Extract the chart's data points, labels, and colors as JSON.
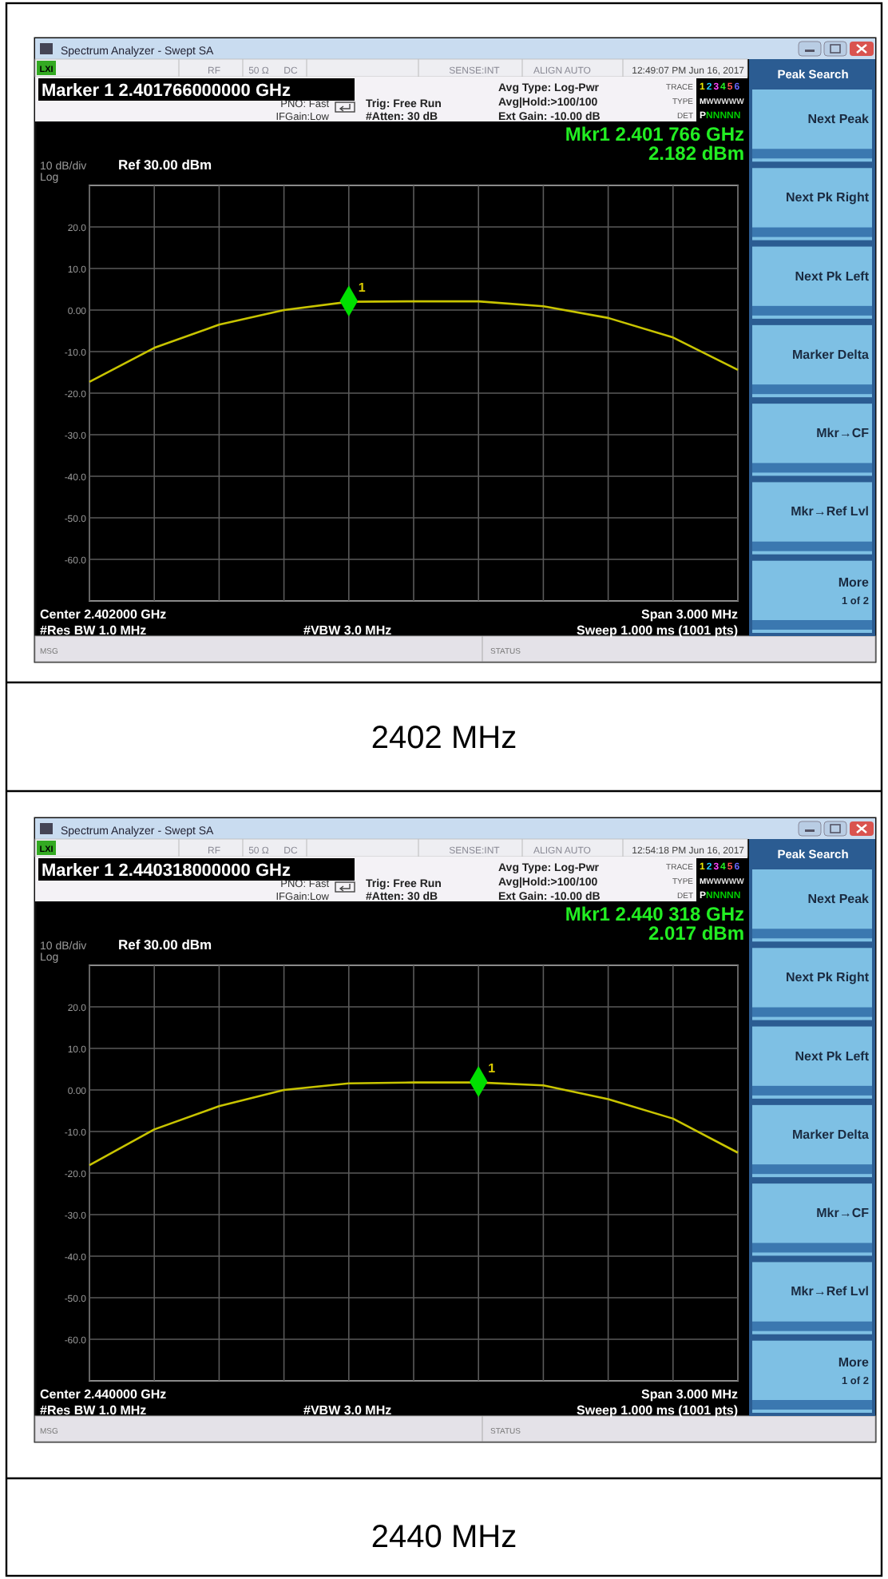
{
  "chart_data": [
    {
      "type": "line",
      "annotations": [
        "RF",
        "50 Ω",
        "DC",
        "SENSE:INT",
        "ALIGN AUTO",
        "12:49:07 PM Jun 16, 2017",
        "Marker 1 2.401766000000 GHz",
        "PNO: Fast",
        "IFGain:Low",
        "Trig: Free Run",
        "#Atten: 30 dB",
        "Avg Type: Log-Pwr",
        "Avg|Hold:>100/100",
        "Ext Gain: -10.00 dB",
        "TRACE",
        "123456",
        "TYPE",
        "MWWWWW",
        "DET",
        "PNNNNN",
        "Mkr1 2.401 766 GHz",
        "2.182 dBm",
        "10 dB/div",
        "Log",
        "Ref 30.00 dBm",
        "Center 2.402000 GHz",
        "#Res BW 1.0 MHz",
        "#VBW 3.0 MHz",
        "Span 3.000 MHz",
        "Sweep  1.000 ms (1001 pts)",
        "MSG",
        "STATUS",
        "Peak Search",
        "Next Peak",
        "Next Pk Right",
        "Next Pk Left",
        "Marker Delta",
        "Mkr→CF",
        "Mkr→Ref Lvl",
        "More",
        "1 of 2",
        "LXI",
        "2402 MHz",
        "Spectrum Analyzer - Swept SA"
      ],
      "categories": [
        null,
        null,
        null,
        null,
        null,
        null,
        null,
        null,
        null,
        null,
        null
      ],
      "ylim": [
        -70,
        30
      ],
      "yticks": [
        {
          "value": 20,
          "label": "20.0"
        },
        {
          "value": 10,
          "label": "10.0"
        },
        {
          "value": 0,
          "label": "0.00"
        },
        {
          "value": -10,
          "label": "-10.0"
        },
        {
          "value": -20,
          "label": "-20.0"
        },
        {
          "value": -30,
          "label": "-30.0"
        },
        {
          "value": -40,
          "label": "-40.0"
        },
        {
          "value": -50,
          "label": "-50.0"
        },
        {
          "value": -60,
          "label": "-60.0"
        }
      ],
      "grid": true,
      "tick_labels": "y",
      "series": [
        {
          "color": "#c8c400",
          "values": [
            -17.3,
            -9.1,
            -3.5,
            0.0,
            2.0,
            2.1,
            2.1,
            0.9,
            -1.9,
            -6.6,
            -14.4
          ]
        },
        {
          "type": "scatter",
          "name": "1",
          "color": "#00e000",
          "marker": "diamond",
          "values": [
            null,
            null,
            null,
            null,
            2.182,
            null,
            null,
            null,
            null,
            null,
            null
          ]
        }
      ]
    },
    {
      "type": "line",
      "annotations": [
        "RF",
        "50 Ω",
        "DC",
        "SENSE:INT",
        "ALIGN AUTO",
        "12:54:18 PM Jun 16, 2017",
        "Marker 1 2.440318000000 GHz",
        "PNO: Fast",
        "IFGain:Low",
        "Trig: Free Run",
        "#Atten: 30 dB",
        "Avg Type: Log-Pwr",
        "Avg|Hold:>100/100",
        "Ext Gain: -10.00 dB",
        "TRACE",
        "123456",
        "TYPE",
        "MWWWWW",
        "DET",
        "PNNNNN",
        "Mkr1 2.440 318 GHz",
        "2.017 dBm",
        "10 dB/div",
        "Log",
        "Ref 30.00 dBm",
        "Center 2.440000 GHz",
        "#Res BW 1.0 MHz",
        "#VBW 3.0 MHz",
        "Span 3.000 MHz",
        "Sweep  1.000 ms (1001 pts)",
        "MSG",
        "STATUS",
        "Peak Search",
        "Next Peak",
        "Next Pk Right",
        "Next Pk Left",
        "Marker Delta",
        "Mkr→CF",
        "Mkr→Ref Lvl",
        "More",
        "1 of 2",
        "LXI",
        "2440 MHz",
        "Spectrum Analyzer - Swept SA"
      ],
      "categories": [
        null,
        null,
        null,
        null,
        null,
        null,
        null,
        null,
        null,
        null,
        null
      ],
      "ylim": [
        -70,
        30
      ],
      "yticks": [
        {
          "value": 20,
          "label": "20.0"
        },
        {
          "value": 10,
          "label": "10.0"
        },
        {
          "value": 0,
          "label": "0.00"
        },
        {
          "value": -10,
          "label": "-10.0"
        },
        {
          "value": -20,
          "label": "-20.0"
        },
        {
          "value": -30,
          "label": "-30.0"
        },
        {
          "value": -40,
          "label": "-40.0"
        },
        {
          "value": -50,
          "label": "-50.0"
        },
        {
          "value": -60,
          "label": "-60.0"
        }
      ],
      "grid": true,
      "tick_labels": "y",
      "series": [
        {
          "color": "#c8c400",
          "values": [
            -18.1,
            -9.5,
            -3.9,
            0.0,
            1.6,
            1.8,
            1.8,
            1.1,
            -2.2,
            -6.9,
            -15.1
          ]
        },
        {
          "type": "scatter",
          "name": "1",
          "color": "#00e000",
          "marker": "diamond",
          "values": [
            null,
            null,
            null,
            null,
            null,
            null,
            2.017,
            null,
            null,
            null,
            null
          ]
        }
      ]
    }
  ]
}
